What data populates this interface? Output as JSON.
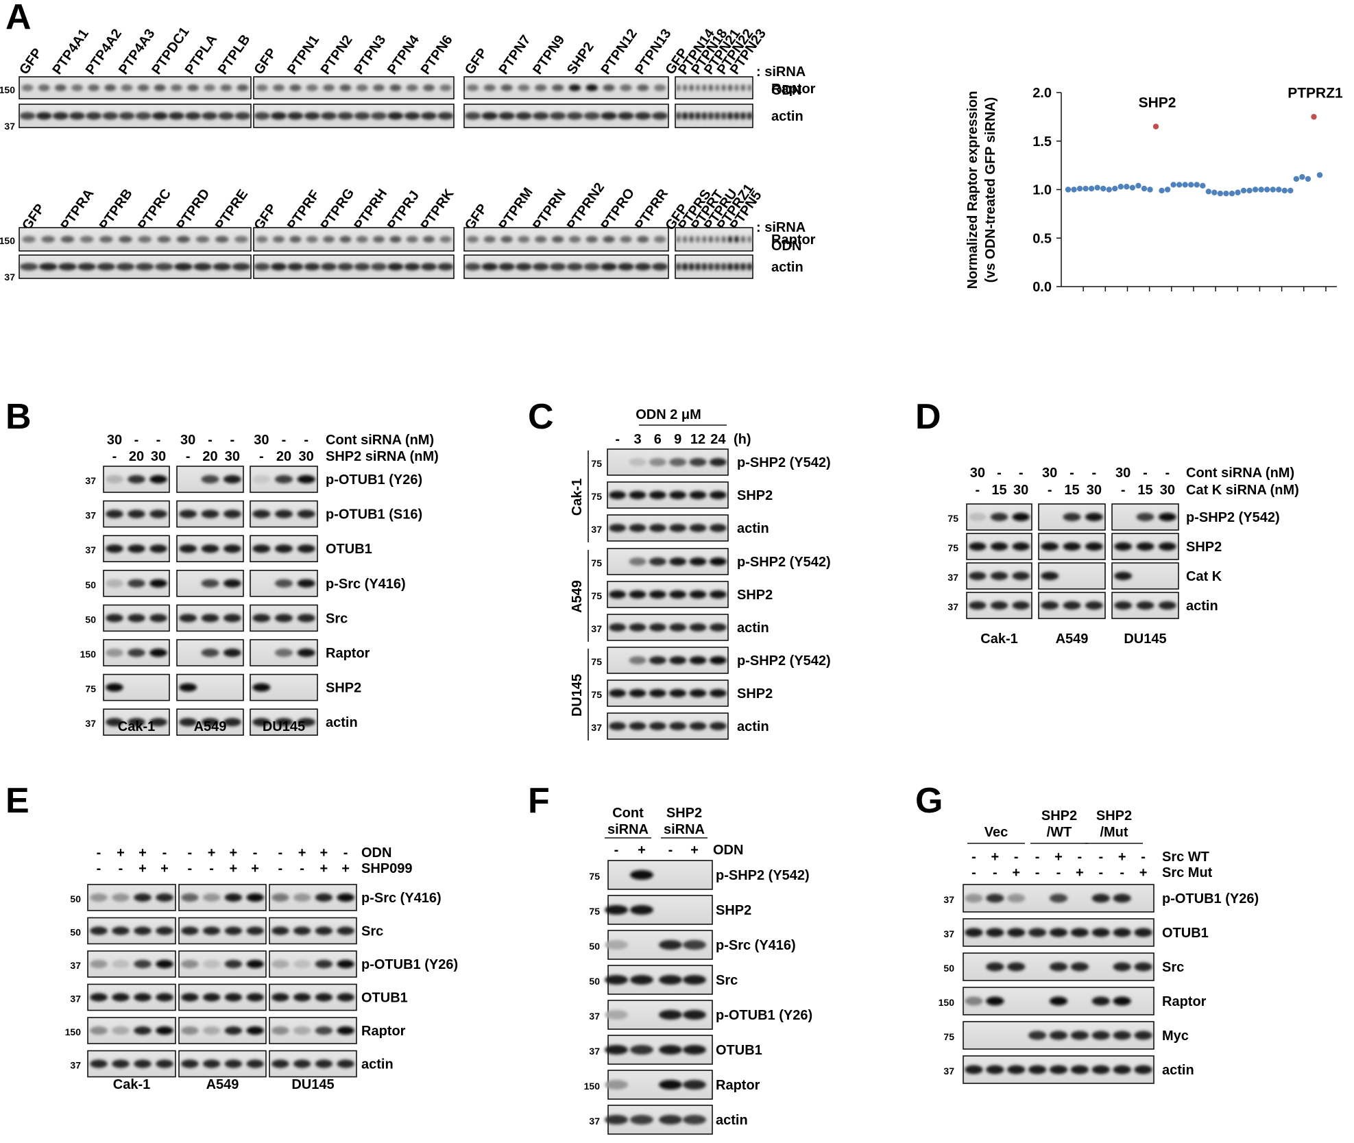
{
  "panelA": {
    "label": "A",
    "rows": [
      {
        "groups": [
          [
            "GFP",
            "PTP4A1",
            "PTP4A2",
            "PTP4A3",
            "PTPDC1",
            "PTPLA",
            "PTPLB"
          ],
          [
            "GFP",
            "PTPN1",
            "PTPN2",
            "PTPN3",
            "PTPN4",
            "PTPN6"
          ],
          [
            "GFP",
            "PTPN7",
            "PTPN9",
            "SHP2",
            "PTPN12",
            "PTPN13"
          ],
          [
            "GFP",
            "PTPN14",
            "PTPN18",
            "PTPN21",
            "PTPN22",
            "PTPN23"
          ]
        ],
        "rights": [
          "Raptor",
          "actin"
        ],
        "mw": [
          "150",
          "37"
        ],
        "strong": {
          "2": [
            3
          ],
          "3": []
        }
      },
      {
        "groups": [
          [
            "GFP",
            "PTPRA",
            "PTPRB",
            "PTPRC",
            "PTPRD",
            "PTPRE"
          ],
          [
            "GFP",
            "PTPRF",
            "PTPRG",
            "PTPRH",
            "PTPRJ",
            "PTPRK"
          ],
          [
            "GFP",
            "PTPRM",
            "PTPRN",
            "PTPRN2",
            "PTPRO",
            "PTPRR"
          ],
          [
            "GFP",
            "PTPRS",
            "PTPRT",
            "PTPRU",
            "PTPRZ1",
            "PTPN5"
          ]
        ],
        "rights": [
          "Raptor",
          "actin"
        ],
        "mw": [
          "150",
          "37"
        ],
        "strong": {
          "3": [
            4
          ]
        }
      }
    ],
    "siRNA_label": ": siRNA",
    "odn_label": "ODN",
    "minus": "-",
    "plus": "+"
  },
  "chart_data": {
    "type": "scatter",
    "ylabel": "Normalized Raptor expression\n(vs ODN-treated GFP siRNA)",
    "ylabel_lines": [
      "Normalized Raptor expression",
      "(vs ODN-treated GFP siRNA)"
    ],
    "ylim": [
      0.0,
      2.0
    ],
    "yticks": [
      "0.0",
      "0.5",
      "1.0",
      "1.5",
      "2.0"
    ],
    "ytick_values": [
      0.0,
      0.5,
      1.0,
      1.5,
      2.0
    ],
    "n_xticks": 12,
    "series": [
      {
        "name": "siRNA",
        "color": "#4f81bd",
        "values": [
          1.0,
          1.0,
          1.01,
          1.01,
          1.01,
          1.02,
          1.01,
          1.0,
          1.01,
          1.03,
          1.03,
          1.02,
          1.04,
          1.01,
          1.0,
          1.65,
          0.99,
          1.0,
          1.05,
          1.05,
          1.05,
          1.05,
          1.05,
          1.04,
          0.98,
          0.97,
          0.96,
          0.96,
          0.96,
          0.97,
          0.99,
          0.99,
          1.0,
          1.0,
          1.0,
          1.0,
          1.0,
          0.99,
          0.99,
          1.11,
          1.13,
          1.11,
          1.75,
          1.15
        ]
      }
    ],
    "highlight_indices": [
      15,
      42
    ],
    "highlight_color": "#c0504d",
    "annotations": [
      {
        "label": "SHP2",
        "index": 15
      },
      {
        "label": "PTPRZ1",
        "index": 42
      }
    ]
  },
  "panelB": {
    "label": "B",
    "cond_rows": [
      [
        "30",
        "-",
        "-"
      ],
      [
        "-",
        "20",
        "30"
      ]
    ],
    "cond_labels": [
      "Cont siRNA (nM)",
      "SHP2 siRNA (nM)"
    ],
    "blots": [
      "p-OTUB1 (Y26)",
      "p-OTUB1 (S16)",
      "OTUB1",
      "p-Src (Y416)",
      "Src",
      "Raptor",
      "SHP2",
      "actin"
    ],
    "mw": [
      "37",
      "37",
      "37",
      "50",
      "50",
      "150",
      "75",
      "37"
    ],
    "cells": [
      "Cak-1",
      "A549",
      "DU145"
    ]
  },
  "panelC": {
    "label": "C",
    "header": "ODN 2 μM",
    "times": [
      "-",
      "3",
      "6",
      "9",
      "12",
      "24"
    ],
    "unit": "(h)",
    "cells": [
      "Cak-1",
      "A549",
      "DU145"
    ],
    "blots": [
      "p-SHP2 (Y542)",
      "SHP2",
      "actin"
    ],
    "mw": [
      "75",
      "75",
      "37"
    ]
  },
  "panelD": {
    "label": "D",
    "cond_rows": [
      [
        "30",
        "-",
        "-"
      ],
      [
        "-",
        "15",
        "30"
      ]
    ],
    "cond_labels": [
      "Cont siRNA (nM)",
      "Cat K siRNA (nM)"
    ],
    "blots": [
      "p-SHP2 (Y542)",
      "SHP2",
      "Cat K",
      "actin"
    ],
    "mw": [
      "75",
      "75",
      "37",
      "37"
    ],
    "cells": [
      "Cak-1",
      "A549",
      "DU145"
    ]
  },
  "panelE": {
    "label": "E",
    "cond_rows": [
      [
        "-",
        "+",
        "+",
        "-"
      ],
      [
        "-",
        "-",
        "+",
        "+"
      ]
    ],
    "cond_labels": [
      "ODN",
      "SHP099"
    ],
    "blots": [
      "p-Src (Y416)",
      "Src",
      "p-OTUB1 (Y26)",
      "OTUB1",
      "Raptor",
      "actin"
    ],
    "mw": [
      "50",
      "50",
      "37",
      "37",
      "150",
      "37"
    ],
    "cells": [
      "Cak-1",
      "A549",
      "DU145"
    ]
  },
  "panelF": {
    "label": "F",
    "groups": [
      [
        "Cont",
        "siRNA"
      ],
      [
        "SHP2",
        "siRNA"
      ]
    ],
    "odn": [
      "-",
      "+",
      "-",
      "+"
    ],
    "odn_label": "ODN",
    "blots": [
      "p-SHP2 (Y542)",
      "SHP2",
      "p-Src (Y416)",
      "Src",
      "p-OTUB1 (Y26)",
      "OTUB1",
      "Raptor",
      "actin"
    ],
    "mw": [
      "75",
      "75",
      "50",
      "50",
      "37",
      "37",
      "150",
      "37"
    ]
  },
  "panelG": {
    "label": "G",
    "groups": [
      [
        "Vec"
      ],
      [
        "SHP2",
        "/WT"
      ],
      [
        "SHP2",
        "/Mut"
      ]
    ],
    "cond_rows": [
      [
        "-",
        "+",
        "-",
        "-",
        "+",
        "-",
        "-",
        "+",
        "-"
      ],
      [
        "-",
        "-",
        "+",
        "-",
        "-",
        "+",
        "-",
        "-",
        "+"
      ]
    ],
    "cond_labels": [
      "Src WT",
      "Src Mut"
    ],
    "blots": [
      "p-OTUB1 (Y26)",
      "OTUB1",
      "Src",
      "Raptor",
      "Myc",
      "actin"
    ],
    "mw": [
      "37",
      "37",
      "50",
      "150",
      "75",
      "37"
    ]
  }
}
